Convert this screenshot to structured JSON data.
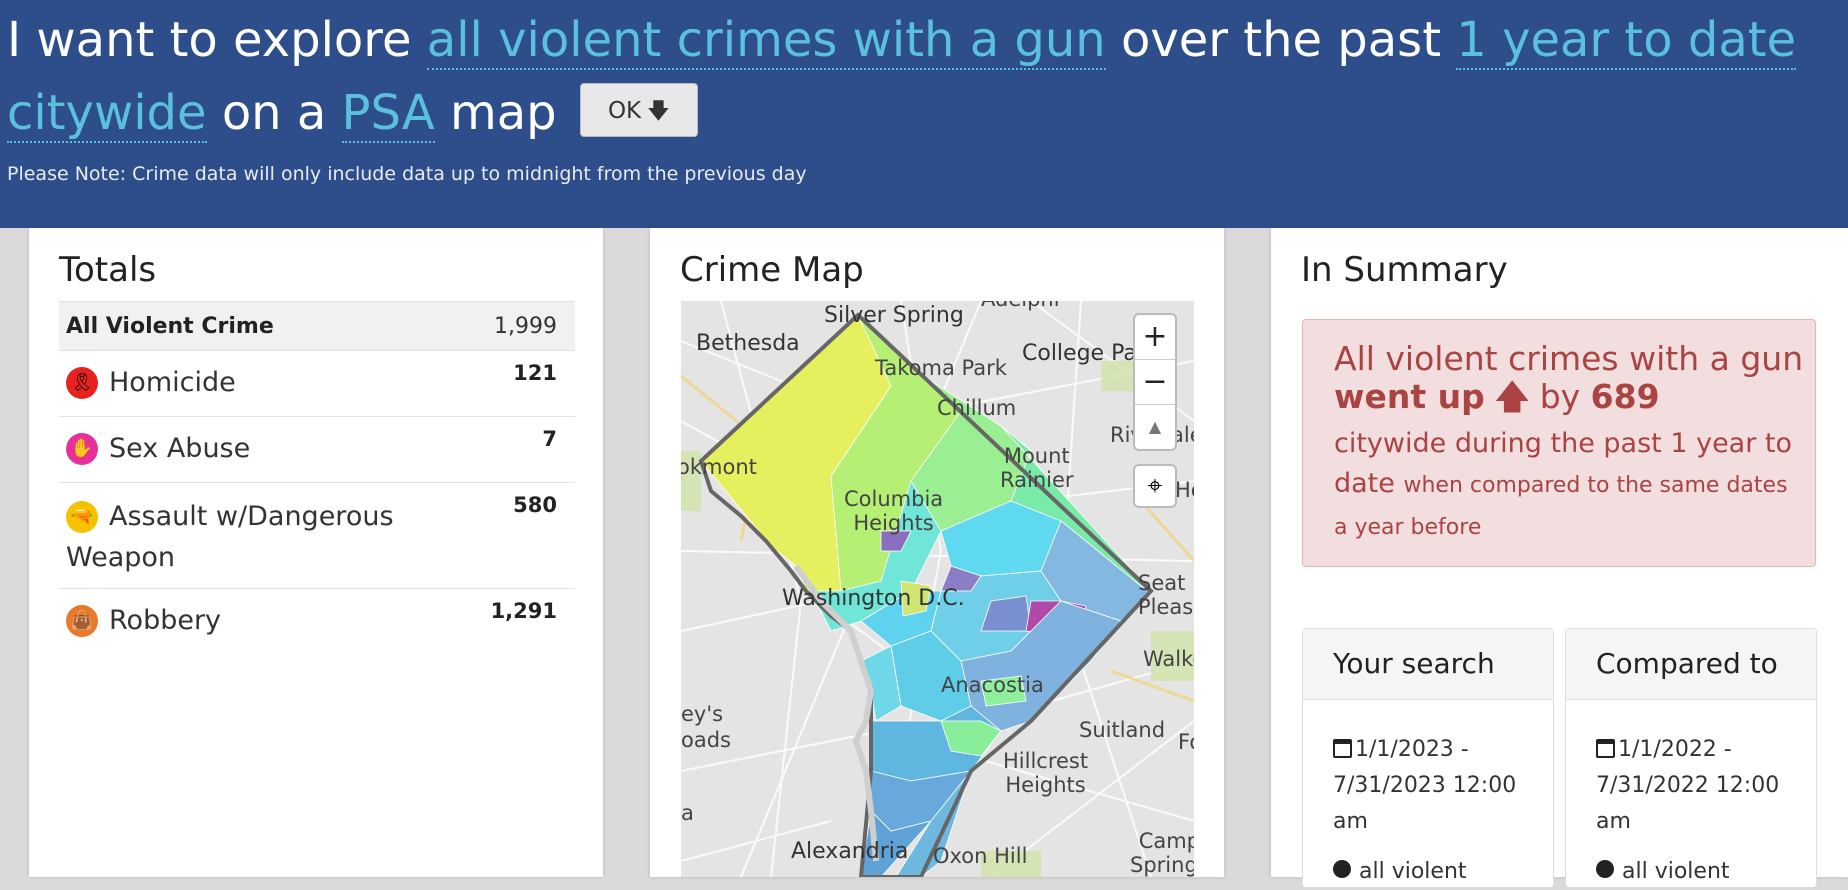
{
  "header": {
    "prefix": "I want to explore",
    "crime_select": "all violent crimes with a gun",
    "over_text": "over the past",
    "time_select": "1 year to date",
    "area_select": "citywide",
    "on_text": "on a",
    "map_type_select": "PSA",
    "map_text": "map",
    "ok_label": "OK",
    "ok_arrow": "🡇",
    "note": "Please Note: Crime data will only include data up to midnight from the previous day"
  },
  "totals": {
    "title": "Totals",
    "all_label": "All Violent Crime",
    "all_value": "1,999",
    "rows": [
      {
        "label": "Homicide",
        "value": "121",
        "icon": "ribbon-icon",
        "color": "#e8231f",
        "glyph": "🎗"
      },
      {
        "label": "Sex Abuse",
        "value": "7",
        "icon": "hand-stop-icon",
        "color": "#e8309a",
        "glyph": "✋"
      },
      {
        "label": "Assault w/Dangerous Weapon",
        "value": "580",
        "icon": "gun-icon",
        "color": "#f5c200",
        "glyph": "🔫"
      },
      {
        "label": "Robbery",
        "value": "1,291",
        "icon": "bag-icon",
        "color": "#e8782a",
        "glyph": "👜"
      }
    ]
  },
  "map": {
    "title": "Crime Map",
    "zoom_in": "+",
    "zoom_out": "−",
    "compass": "▲",
    "locate": "⌖",
    "labels": {
      "silver_spring": "Silver Spring",
      "adelphi": "Adelphi",
      "bethesda": "Bethesda",
      "takoma_park": "Takoma Park",
      "college_park": "College Pa",
      "chillum": "Chillum",
      "riverdale": "Riv",
      "riverdale2": "ale",
      "mount_rainier": "Mount\nRainier",
      "kmont": "okmont",
      "columbia_heights": "Columbia\nHeights",
      "washington": "Washington D.C.",
      "seat_pleasant": "Seat\nPleasan",
      "walker": "Walke",
      "anacostia": "Anacostia",
      "suitland": "Suitland",
      "fo": "Fo",
      "hillcrest": "Hillcrest\nHeights",
      "baileys": "ey's\noads",
      "a_label": "a",
      "alexandria": "Alexandria",
      "oxon_hill": "Oxon Hill",
      "camp_springs": "Camp\nSprings",
      "ho": "Ho"
    }
  },
  "summary": {
    "title": "In Summary",
    "line1_a": "All violent crimes with a gun",
    "went_up": "went up",
    "up_arrow": "🡅",
    "by": "by",
    "amount": "689",
    "line2_a": "citywide during the past 1 year to date",
    "line2_b": "when compared to the same dates a year before"
  },
  "your_search": {
    "title": "Your search",
    "dates": "1/1/2023 - 7/31/2023 12:00 am",
    "crime": "all violent"
  },
  "compared_to": {
    "title": "Compared to",
    "dates": "1/1/2022 - 7/31/2022 12:00 am",
    "crime": "all violent"
  },
  "colors": {
    "header_bg": "#2d4e8a",
    "select_link": "#5bc0de",
    "alert_text": "#a94442",
    "alert_bg": "#f2dede"
  }
}
